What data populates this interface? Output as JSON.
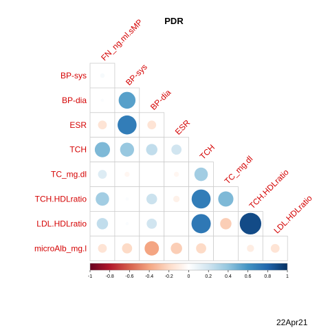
{
  "chart_data": {
    "type": "heatmap",
    "title": "PDR",
    "variables": [
      "FN_ng.ml.sMP",
      "BP-sys",
      "BP-dia",
      "ESR",
      "TCH",
      "TC_mg.dl",
      "TCH.HDLratio",
      "LDL.HDLratio",
      "microAlb_mg.l"
    ],
    "row_labels": [
      "BP-sys",
      "BP-dia",
      "ESR",
      "TCH",
      "TC_mg.dl",
      "TCH.HDLratio",
      "LDL.HDLratio",
      "microAlb_mg.l"
    ],
    "col_labels": [
      "FN_ng.ml.sMP",
      "BP-sys",
      "BP-dia",
      "ESR",
      "TCH",
      "TC_mg.dl",
      "TCH.HDLratio",
      "LDL.HDLratio"
    ],
    "matrix": [
      [
        0.04
      ],
      [
        0.02,
        0.55
      ],
      [
        -0.15,
        0.7,
        -0.15
      ],
      [
        0.45,
        0.38,
        0.25,
        0.2
      ],
      [
        0.15,
        -0.05,
        0.0,
        -0.05,
        0.35
      ],
      [
        0.35,
        0.02,
        0.22,
        -0.08,
        0.7,
        0.45
      ],
      [
        0.25,
        0.02,
        0.2,
        0.0,
        0.72,
        -0.25,
        0.9
      ],
      [
        -0.15,
        -0.2,
        -0.4,
        -0.25,
        -0.2,
        0.0,
        -0.1,
        -0.15
      ]
    ],
    "shape": "circle",
    "layout": "lower-triangle",
    "colorbar": {
      "min": -1,
      "max": 1,
      "ticks": [
        "-1",
        "-0.8",
        "-0.6",
        "-0.4",
        "-0.2",
        "0",
        "0.2",
        "0.4",
        "0.6",
        "0.8",
        "1"
      ],
      "colors": [
        "#67001f",
        "#b2182b",
        "#d6604d",
        "#f4a582",
        "#fddbc7",
        "#ffffff",
        "#d1e5f0",
        "#92c5de",
        "#4393c3",
        "#2166ac",
        "#053061"
      ]
    }
  },
  "footer": {
    "date_label": "22Apr21"
  },
  "colors": {
    "label": "#d40000",
    "grid": "#cccccc"
  }
}
